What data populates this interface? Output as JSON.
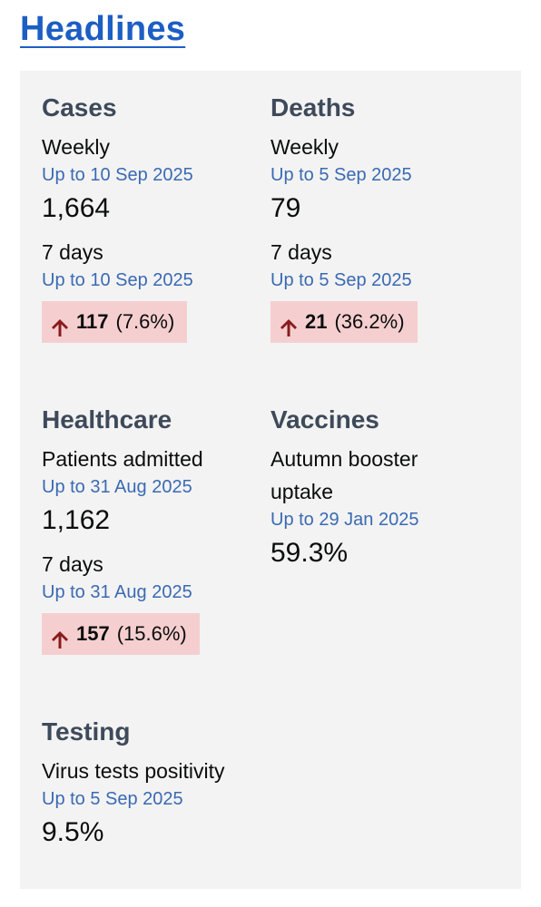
{
  "header": {
    "title": "Headlines"
  },
  "colors": {
    "link_blue": "#1d5ec4",
    "date_blue": "#3a6ab3",
    "panel_bg": "#f3f3f3",
    "badge_bg": "#f5cfd0",
    "arrow_red": "#8a1c1c"
  },
  "cases": {
    "title": "Cases",
    "weekly_label": "Weekly",
    "weekly_date": "Up to 10 Sep 2025",
    "weekly_value": "1,664",
    "change_label": "7 days",
    "change_date": "Up to 10 Sep 2025",
    "change_amount": "117",
    "change_percent": "(7.6%)",
    "change_icon": "arrow-up-icon"
  },
  "deaths": {
    "title": "Deaths",
    "weekly_label": "Weekly",
    "weekly_date": "Up to 5 Sep 2025",
    "weekly_value": "79",
    "change_label": "7 days",
    "change_date": "Up to 5 Sep 2025",
    "change_amount": "21",
    "change_percent": "(36.2%)",
    "change_icon": "arrow-up-icon"
  },
  "healthcare": {
    "title": "Healthcare",
    "metric_label": "Patients admitted",
    "metric_date": "Up to 31 Aug 2025",
    "metric_value": "1,162",
    "change_label": "7 days",
    "change_date": "Up to 31 Aug 2025",
    "change_amount": "157",
    "change_percent": "(15.6%)",
    "change_icon": "arrow-up-icon"
  },
  "vaccines": {
    "title": "Vaccines",
    "metric_label": "Autumn booster uptake",
    "metric_date": "Up to 29 Jan 2025",
    "metric_value": "59.3%"
  },
  "testing": {
    "title": "Testing",
    "metric_label": "Virus tests positivity",
    "metric_date": "Up to 5 Sep 2025",
    "metric_value": "9.5%"
  }
}
